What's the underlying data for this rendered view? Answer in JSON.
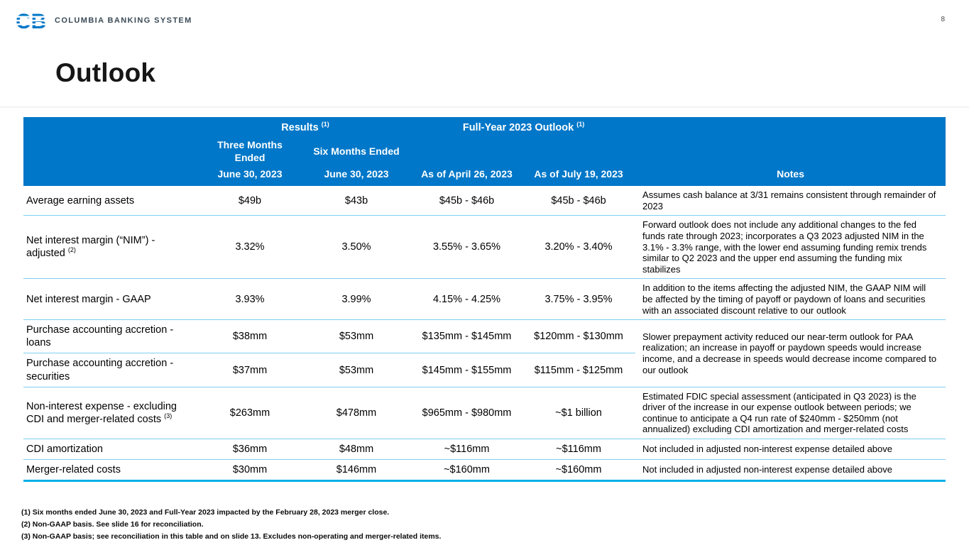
{
  "page": {
    "number": "8",
    "logo_mark": "CB",
    "logo_text": "COLUMBIA BANKING SYSTEM",
    "title": "Outlook"
  },
  "colors": {
    "header_blue": "#0077C8",
    "row_divider_blue": "#7DD0F0",
    "bottom_border_cyan": "#00B0E6",
    "logo_blue": "#0077C8"
  },
  "table": {
    "header": {
      "results_label": "Results",
      "results_sup": "(1)",
      "outlook_label": "Full-Year 2023 Outlook",
      "outlook_sup": "(1)",
      "col2_line1": "Three Months Ended",
      "col2_line2": "June 30, 2023",
      "col3_line1": "Six Months Ended",
      "col3_line2": "June 30, 2023",
      "col4": "As of April 26, 2023",
      "col5": "As of July 19, 2023",
      "notes": "Notes"
    },
    "rows": [
      {
        "label": "Average earning assets",
        "sup": "",
        "values": [
          "$49b",
          "$43b",
          "$45b - $46b",
          "$45b - $46b"
        ],
        "note": "Assumes cash balance at 3/31 remains consistent through remainder of 2023",
        "note_rowspan": 1
      },
      {
        "label": "Net interest margin (“NIM”) - adjusted",
        "sup": "(2)",
        "values": [
          "3.32%",
          "3.50%",
          "3.55% - 3.65%",
          "3.20% - 3.40%"
        ],
        "note": "Forward outlook does not include any additional changes to the fed funds rate through 2023; incorporates a Q3 2023 adjusted NIM in the 3.1% - 3.3% range, with the lower end assuming funding remix trends similar to Q2 2023 and the upper end assuming the funding mix stabilizes",
        "note_rowspan": 1
      },
      {
        "label": "Net interest margin - GAAP",
        "sup": "",
        "values": [
          "3.93%",
          "3.99%",
          "4.15% - 4.25%",
          "3.75% - 3.95%"
        ],
        "note": "In addition to the items affecting the adjusted NIM, the GAAP NIM will be affected by the timing of payoff or paydown of loans and securities with an associated discount relative to our outlook",
        "note_rowspan": 1
      },
      {
        "label": "Purchase accounting accretion - loans",
        "sup": "",
        "values": [
          "$38mm",
          "$53mm",
          "$135mm - $145mm",
          "$120mm - $130mm"
        ],
        "note": "Slower prepayment activity reduced our near-term outlook for PAA realization; an increase in payoff or paydown speeds would increase income, and a decrease in speeds would decrease income compared to our outlook",
        "note_rowspan": 2
      },
      {
        "label": "Purchase accounting accretion - securities",
        "sup": "",
        "values": [
          "$37mm",
          "$53mm",
          "$145mm - $155mm",
          "$115mm - $125mm"
        ],
        "note": null,
        "note_rowspan": 0
      },
      {
        "label": "Non-interest expense - excluding CDI and merger-related costs",
        "sup": "(3)",
        "values": [
          "$263mm",
          "$478mm",
          "$965mm - $980mm",
          "~$1 billion"
        ],
        "note": "Estimated FDIC special assessment (anticipated in Q3 2023) is the driver of the increase in our expense outlook between periods; we continue to anticipate a Q4 run rate of $240mm - $250mm (not annualized) excluding CDI amortization and merger-related costs",
        "note_rowspan": 1
      },
      {
        "label": "CDI amortization",
        "sup": "",
        "values": [
          "$36mm",
          "$48mm",
          "~$116mm",
          "~$116mm"
        ],
        "note": "Not included in adjusted non-interest expense detailed above",
        "note_rowspan": 1
      },
      {
        "label": "Merger-related costs",
        "sup": "",
        "values": [
          "$30mm",
          "$146mm",
          "~$160mm",
          "~$160mm"
        ],
        "note": "Not included in adjusted non-interest expense detailed above",
        "note_rowspan": 1
      }
    ]
  },
  "footnotes": [
    "(1) Six months ended June 30, 2023 and Full-Year 2023 impacted by the February 28, 2023 merger close.",
    "(2) Non-GAAP basis. See slide 16 for reconciliation.",
    "(3) Non-GAAP basis; see reconciliation in this table and on slide 13. Excludes non-operating and merger-related items."
  ]
}
